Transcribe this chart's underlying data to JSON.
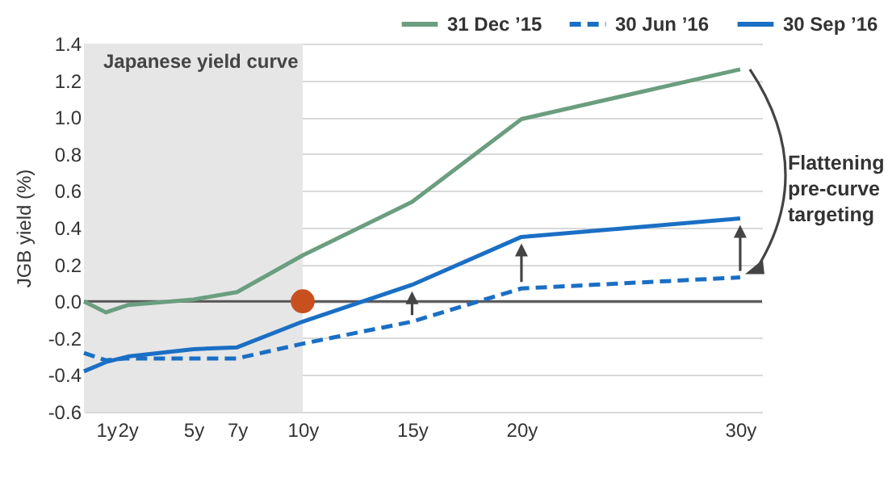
{
  "chart_data": {
    "type": "line",
    "ylabel": "JGB yield (%)",
    "x": [
      0,
      1,
      2,
      5,
      7,
      10,
      15,
      20,
      30
    ],
    "series": [
      {
        "name": "31 Dec ’15",
        "color": "#6a9e7f",
        "values": [
          0.0,
          -0.06,
          -0.02,
          0.01,
          0.05,
          0.25,
          0.54,
          0.99,
          1.26
        ]
      },
      {
        "name": "30 Jun ’16",
        "color": "#1a6fc4",
        "line_style": "dashed",
        "values": [
          -0.28,
          -0.32,
          -0.31,
          -0.31,
          -0.31,
          -0.23,
          -0.11,
          0.07,
          0.13
        ]
      },
      {
        "name": "30 Sep ’16",
        "color": "#1a6fc4",
        "values": [
          -0.38,
          -0.33,
          -0.3,
          -0.26,
          -0.25,
          -0.11,
          0.09,
          0.35,
          0.45
        ]
      },
      {
        "type": "scatter",
        "color": "#c8501e",
        "marker": "circle",
        "x": [
          10
        ],
        "values": [
          0
        ]
      }
    ],
    "xlim": [
      0,
      31
    ],
    "xticks": [
      {
        "value": 1,
        "label": "1y"
      },
      {
        "value": 2,
        "label": "2y"
      },
      {
        "value": 5,
        "label": "5y"
      },
      {
        "value": 7,
        "label": "7y"
      },
      {
        "value": 10,
        "label": "10y"
      },
      {
        "value": 15,
        "label": "15y"
      },
      {
        "value": 20,
        "label": "20y"
      },
      {
        "value": 30,
        "label": "30y"
      }
    ],
    "ylim": [
      -0.6,
      1.4
    ],
    "yticks": [
      -0.6,
      -0.4,
      -0.2,
      {
        "value": 0,
        "label": "0.0"
      },
      0.2,
      0.4,
      0.6,
      0.8,
      {
        "value": 1,
        "label": "1.0"
      },
      1.2,
      1.4
    ],
    "grid": "y",
    "legend": "top right",
    "line_style": "solid",
    "bands": [
      {
        "axis": "x",
        "from": 0,
        "to": 10,
        "label": "Japanese yield curve",
        "color": "#e6e6e6"
      }
    ],
    "ref_lines": [
      {
        "axis": "y",
        "value": 0,
        "color": "#555555"
      }
    ],
    "annotations": [
      "Flattening pre-curve targeting"
    ]
  }
}
